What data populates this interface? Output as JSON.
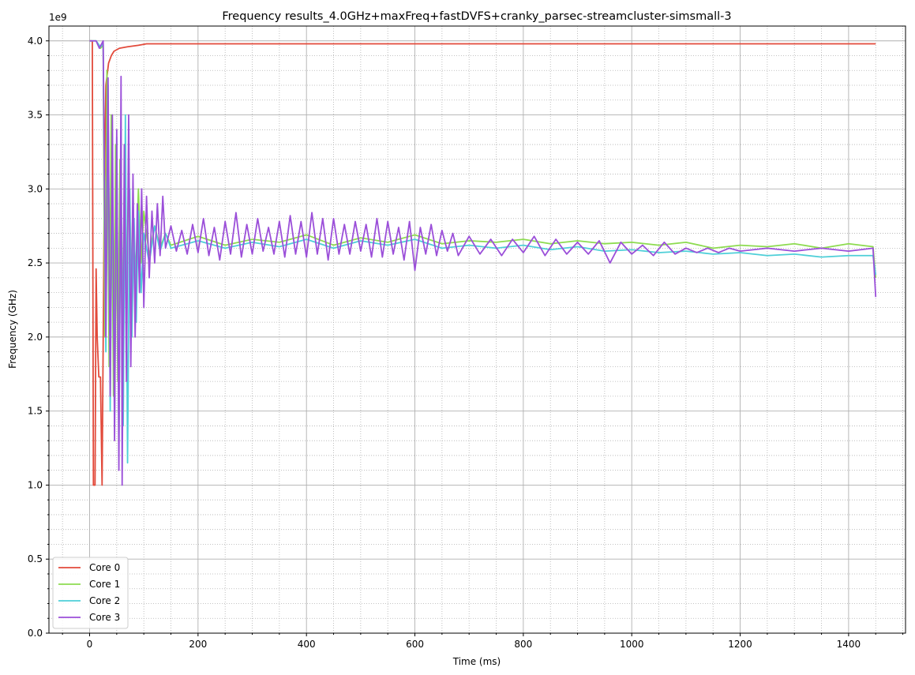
{
  "chart_data": {
    "type": "line",
    "title": "Frequency results_4.0GHz+maxFreq+fastDVFS+cranky_parsec-streamcluster-simsmall-3",
    "xlabel": "Time (ms)",
    "ylabel": "Frequency (GHz)",
    "y_offset_text": "1e9",
    "xlim": [
      -75,
      1505
    ],
    "ylim": [
      0,
      4100000000
    ],
    "x_ticks": [
      0,
      200,
      400,
      600,
      800,
      1000,
      1200,
      1400
    ],
    "x_tick_labels": [
      "0",
      "200",
      "400",
      "600",
      "800",
      "1000",
      "1200",
      "1400"
    ],
    "y_ticks": [
      0,
      500000000,
      1000000000,
      1500000000,
      2000000000,
      2500000000,
      3000000000,
      3500000000,
      4000000000
    ],
    "y_tick_labels": [
      "0.0",
      "0.5",
      "1.0",
      "1.5",
      "2.0",
      "2.5",
      "3.0",
      "3.5",
      "4.0"
    ],
    "grid": "major solid, minor dotted",
    "legend_position": "lower-left",
    "series": [
      {
        "name": "Core 0",
        "color": "#e24a3b",
        "points": [
          [
            0,
            4000000000
          ],
          [
            5,
            4000000000
          ],
          [
            7,
            1000000000
          ],
          [
            10,
            1000000000
          ],
          [
            12,
            2460000000
          ],
          [
            14,
            2000000000
          ],
          [
            17,
            1730000000
          ],
          [
            20,
            1730000000
          ],
          [
            23,
            1000000000
          ],
          [
            27,
            2900000000
          ],
          [
            30,
            3700000000
          ],
          [
            35,
            3850000000
          ],
          [
            40,
            3900000000
          ],
          [
            45,
            3930000000
          ],
          [
            55,
            3950000000
          ],
          [
            70,
            3960000000
          ],
          [
            90,
            3970000000
          ],
          [
            105,
            3980000000
          ],
          [
            1450,
            3980000000
          ]
        ]
      },
      {
        "name": "Core 1",
        "color": "#8ddb50",
        "points": [
          [
            0,
            4000000000
          ],
          [
            12,
            4000000000
          ],
          [
            20,
            3950000000
          ],
          [
            25,
            3970000000
          ],
          [
            28,
            2000000000
          ],
          [
            32,
            3800000000
          ],
          [
            36,
            1800000000
          ],
          [
            40,
            3500000000
          ],
          [
            44,
            1600000000
          ],
          [
            48,
            3300000000
          ],
          [
            52,
            1700000000
          ],
          [
            56,
            3200000000
          ],
          [
            60,
            2000000000
          ],
          [
            64,
            3000000000
          ],
          [
            68,
            2200000000
          ],
          [
            72,
            3100000000
          ],
          [
            76,
            2300000000
          ],
          [
            80,
            2900000000
          ],
          [
            85,
            2400000000
          ],
          [
            90,
            3000000000
          ],
          [
            95,
            2500000000
          ],
          [
            100,
            2850000000
          ],
          [
            110,
            2550000000
          ],
          [
            120,
            2750000000
          ],
          [
            130,
            2600000000
          ],
          [
            140,
            2700000000
          ],
          [
            150,
            2620000000
          ],
          [
            200,
            2680000000
          ],
          [
            250,
            2620000000
          ],
          [
            300,
            2660000000
          ],
          [
            350,
            2640000000
          ],
          [
            400,
            2690000000
          ],
          [
            450,
            2620000000
          ],
          [
            500,
            2670000000
          ],
          [
            550,
            2640000000
          ],
          [
            600,
            2690000000
          ],
          [
            650,
            2630000000
          ],
          [
            700,
            2650000000
          ],
          [
            750,
            2640000000
          ],
          [
            800,
            2660000000
          ],
          [
            850,
            2630000000
          ],
          [
            900,
            2650000000
          ],
          [
            950,
            2630000000
          ],
          [
            1000,
            2640000000
          ],
          [
            1050,
            2620000000
          ],
          [
            1100,
            2640000000
          ],
          [
            1150,
            2600000000
          ],
          [
            1200,
            2620000000
          ],
          [
            1250,
            2610000000
          ],
          [
            1300,
            2630000000
          ],
          [
            1350,
            2600000000
          ],
          [
            1400,
            2630000000
          ],
          [
            1445,
            2610000000
          ],
          [
            1450,
            2400000000
          ]
        ]
      },
      {
        "name": "Core 2",
        "color": "#4ecfd8",
        "points": [
          [
            0,
            4000000000
          ],
          [
            12,
            4000000000
          ],
          [
            20,
            3960000000
          ],
          [
            25,
            3980000000
          ],
          [
            30,
            1900000000
          ],
          [
            34,
            3700000000
          ],
          [
            38,
            1500000000
          ],
          [
            42,
            3300000000
          ],
          [
            46,
            1400000000
          ],
          [
            50,
            3350000000
          ],
          [
            54,
            1250000000
          ],
          [
            58,
            3200000000
          ],
          [
            62,
            1400000000
          ],
          [
            66,
            3500000000
          ],
          [
            70,
            1150000000
          ],
          [
            74,
            3000000000
          ],
          [
            78,
            2000000000
          ],
          [
            82,
            2800000000
          ],
          [
            86,
            2100000000
          ],
          [
            90,
            2850000000
          ],
          [
            95,
            2300000000
          ],
          [
            100,
            2700000000
          ],
          [
            110,
            2500000000
          ],
          [
            120,
            2750000000
          ],
          [
            130,
            2580000000
          ],
          [
            140,
            2700000000
          ],
          [
            150,
            2600000000
          ],
          [
            200,
            2650000000
          ],
          [
            250,
            2600000000
          ],
          [
            300,
            2640000000
          ],
          [
            350,
            2610000000
          ],
          [
            400,
            2660000000
          ],
          [
            450,
            2600000000
          ],
          [
            500,
            2650000000
          ],
          [
            550,
            2620000000
          ],
          [
            600,
            2660000000
          ],
          [
            650,
            2600000000
          ],
          [
            700,
            2620000000
          ],
          [
            750,
            2600000000
          ],
          [
            800,
            2620000000
          ],
          [
            850,
            2590000000
          ],
          [
            900,
            2610000000
          ],
          [
            950,
            2580000000
          ],
          [
            1000,
            2590000000
          ],
          [
            1050,
            2570000000
          ],
          [
            1100,
            2580000000
          ],
          [
            1150,
            2560000000
          ],
          [
            1200,
            2570000000
          ],
          [
            1250,
            2550000000
          ],
          [
            1300,
            2560000000
          ],
          [
            1350,
            2540000000
          ],
          [
            1400,
            2550000000
          ],
          [
            1445,
            2550000000
          ],
          [
            1450,
            2420000000
          ]
        ]
      },
      {
        "name": "Core 3",
        "color": "#9b4fd9",
        "points": [
          [
            0,
            4000000000
          ],
          [
            12,
            4000000000
          ],
          [
            18,
            3950000000
          ],
          [
            25,
            4000000000
          ],
          [
            30,
            2000000000
          ],
          [
            34,
            3750000000
          ],
          [
            38,
            1600000000
          ],
          [
            42,
            3500000000
          ],
          [
            46,
            1300000000
          ],
          [
            50,
            3400000000
          ],
          [
            54,
            1100000000
          ],
          [
            58,
            3760000000
          ],
          [
            60,
            1000000000
          ],
          [
            64,
            3300000000
          ],
          [
            68,
            1700000000
          ],
          [
            72,
            3500000000
          ],
          [
            76,
            1800000000
          ],
          [
            80,
            3100000000
          ],
          [
            84,
            2000000000
          ],
          [
            88,
            2900000000
          ],
          [
            92,
            2300000000
          ],
          [
            96,
            3000000000
          ],
          [
            100,
            2200000000
          ],
          [
            105,
            2950000000
          ],
          [
            110,
            2400000000
          ],
          [
            115,
            2850000000
          ],
          [
            120,
            2500000000
          ],
          [
            125,
            2900000000
          ],
          [
            130,
            2550000000
          ],
          [
            135,
            2950000000
          ],
          [
            140,
            2600000000
          ],
          [
            150,
            2750000000
          ],
          [
            160,
            2580000000
          ],
          [
            170,
            2720000000
          ],
          [
            180,
            2560000000
          ],
          [
            190,
            2760000000
          ],
          [
            200,
            2570000000
          ],
          [
            210,
            2800000000
          ],
          [
            220,
            2550000000
          ],
          [
            230,
            2740000000
          ],
          [
            240,
            2520000000
          ],
          [
            250,
            2780000000
          ],
          [
            260,
            2560000000
          ],
          [
            270,
            2840000000
          ],
          [
            280,
            2540000000
          ],
          [
            290,
            2760000000
          ],
          [
            300,
            2560000000
          ],
          [
            310,
            2800000000
          ],
          [
            320,
            2580000000
          ],
          [
            330,
            2740000000
          ],
          [
            340,
            2560000000
          ],
          [
            350,
            2780000000
          ],
          [
            360,
            2540000000
          ],
          [
            370,
            2820000000
          ],
          [
            380,
            2560000000
          ],
          [
            390,
            2780000000
          ],
          [
            400,
            2540000000
          ],
          [
            410,
            2840000000
          ],
          [
            420,
            2560000000
          ],
          [
            430,
            2800000000
          ],
          [
            440,
            2520000000
          ],
          [
            450,
            2800000000
          ],
          [
            460,
            2560000000
          ],
          [
            470,
            2760000000
          ],
          [
            480,
            2560000000
          ],
          [
            490,
            2780000000
          ],
          [
            500,
            2580000000
          ],
          [
            510,
            2760000000
          ],
          [
            520,
            2540000000
          ],
          [
            530,
            2800000000
          ],
          [
            540,
            2540000000
          ],
          [
            550,
            2780000000
          ],
          [
            560,
            2560000000
          ],
          [
            570,
            2740000000
          ],
          [
            580,
            2520000000
          ],
          [
            590,
            2780000000
          ],
          [
            600,
            2450000000
          ],
          [
            610,
            2740000000
          ],
          [
            620,
            2560000000
          ],
          [
            630,
            2760000000
          ],
          [
            640,
            2550000000
          ],
          [
            650,
            2720000000
          ],
          [
            660,
            2580000000
          ],
          [
            670,
            2700000000
          ],
          [
            680,
            2550000000
          ],
          [
            700,
            2680000000
          ],
          [
            720,
            2560000000
          ],
          [
            740,
            2660000000
          ],
          [
            760,
            2550000000
          ],
          [
            780,
            2660000000
          ],
          [
            800,
            2570000000
          ],
          [
            820,
            2680000000
          ],
          [
            840,
            2550000000
          ],
          [
            860,
            2660000000
          ],
          [
            880,
            2560000000
          ],
          [
            900,
            2640000000
          ],
          [
            920,
            2560000000
          ],
          [
            940,
            2650000000
          ],
          [
            960,
            2500000000
          ],
          [
            980,
            2640000000
          ],
          [
            1000,
            2560000000
          ],
          [
            1020,
            2620000000
          ],
          [
            1040,
            2550000000
          ],
          [
            1060,
            2640000000
          ],
          [
            1080,
            2560000000
          ],
          [
            1100,
            2600000000
          ],
          [
            1120,
            2570000000
          ],
          [
            1140,
            2600000000
          ],
          [
            1160,
            2570000000
          ],
          [
            1180,
            2600000000
          ],
          [
            1200,
            2580000000
          ],
          [
            1250,
            2600000000
          ],
          [
            1300,
            2580000000
          ],
          [
            1350,
            2600000000
          ],
          [
            1400,
            2580000000
          ],
          [
            1445,
            2600000000
          ],
          [
            1450,
            2270000000
          ]
        ]
      }
    ]
  }
}
